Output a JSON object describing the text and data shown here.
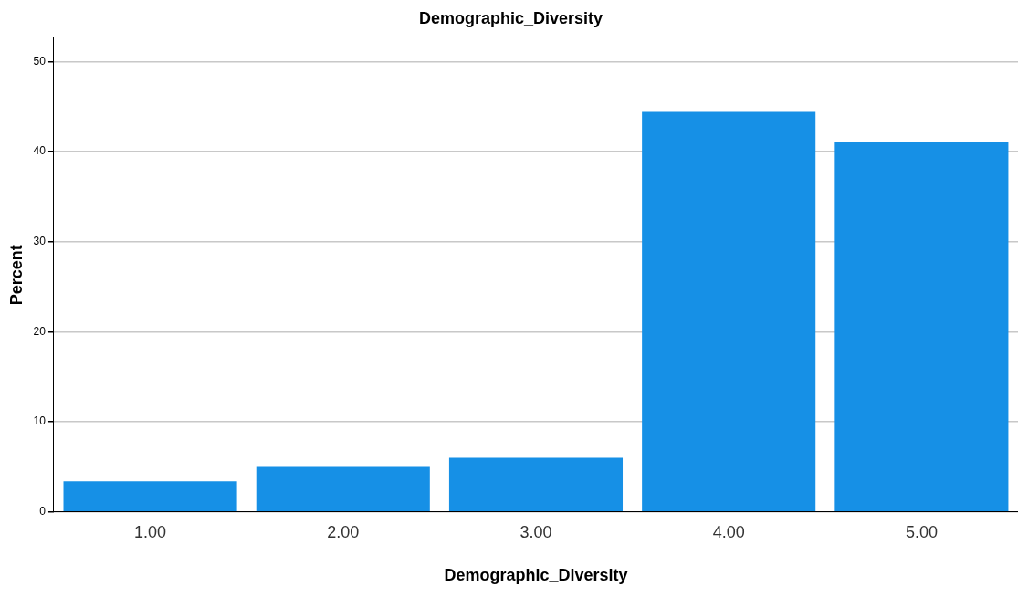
{
  "chart_data": {
    "type": "bar",
    "title": "Demographic_Diversity",
    "xlabel": "Demographic_Diversity",
    "ylabel": "Percent",
    "categories": [
      "1.00",
      "2.00",
      "3.00",
      "4.00",
      "5.00"
    ],
    "values": [
      3.4,
      5.0,
      6.0,
      44.4,
      41.0
    ],
    "color": "#1690e6",
    "ylim": [
      0,
      52.6
    ],
    "yticks": [
      0,
      10,
      20,
      30,
      40,
      50
    ],
    "grid": "y"
  }
}
